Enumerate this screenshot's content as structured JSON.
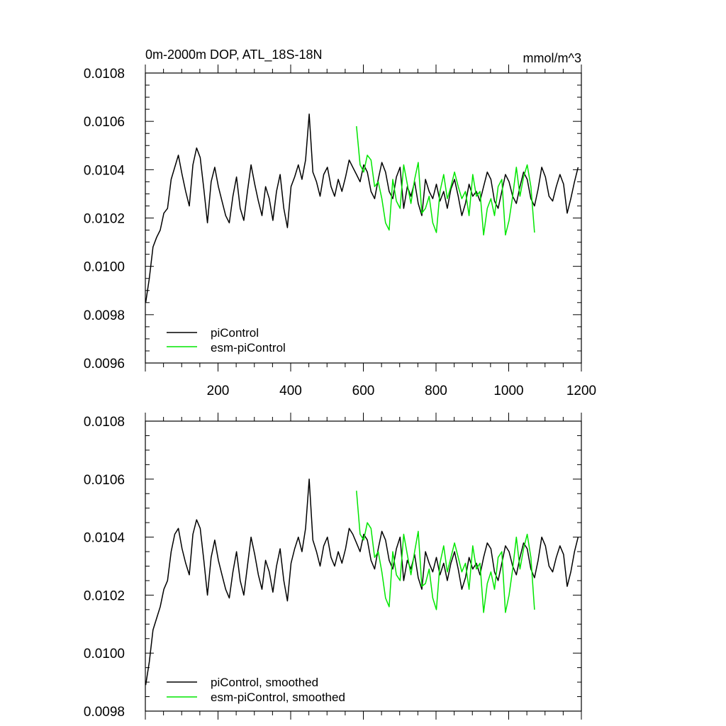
{
  "chart_data": [
    {
      "type": "line",
      "title": "0m-2000m DOP, ATL_18S-18N",
      "units": "mmol/m^3",
      "xlim": [
        0,
        1200
      ],
      "ylim": [
        0.0096,
        0.0108
      ],
      "x_ticks": [
        200,
        400,
        600,
        800,
        1000,
        1200
      ],
      "x_tick_labels": [
        "200",
        "400",
        "600",
        "800",
        "1000",
        "1200"
      ],
      "y_ticks": [
        0.0096,
        0.0098,
        0.01,
        0.0102,
        0.0104,
        0.0106,
        0.0108
      ],
      "y_tick_labels": [
        "0.0096",
        "0.0098",
        "0.0100",
        "0.0102",
        "0.0104",
        "0.0106",
        "0.0108"
      ],
      "legend_position": "bottom-left",
      "series": [
        {
          "name": "piControl",
          "color": "#000000",
          "x_start": 1,
          "x_step": 10,
          "values": [
            0.00985,
            0.00995,
            0.01008,
            0.01012,
            0.01015,
            0.01022,
            0.01024,
            0.01036,
            0.01041,
            0.01046,
            0.01038,
            0.01031,
            0.01025,
            0.01042,
            0.01049,
            0.01045,
            0.01032,
            0.01018,
            0.01035,
            0.01041,
            0.01033,
            0.01027,
            0.01021,
            0.01018,
            0.01029,
            0.01037,
            0.01024,
            0.01019,
            0.01031,
            0.01042,
            0.01034,
            0.01027,
            0.01021,
            0.01033,
            0.01028,
            0.01019,
            0.01031,
            0.01038,
            0.01024,
            0.01016,
            0.01033,
            0.01037,
            0.01042,
            0.01036,
            0.01044,
            0.01063,
            0.01039,
            0.01035,
            0.01029,
            0.01038,
            0.01041,
            0.01033,
            0.01029,
            0.01036,
            0.01031,
            0.01037,
            0.01044,
            0.01041,
            0.01038,
            0.01035,
            0.01042,
            0.01039,
            0.01031,
            0.01028,
            0.01036,
            0.01043,
            0.01039,
            0.01031,
            0.01028,
            0.01037,
            0.01041,
            0.01024,
            0.01033,
            0.01029,
            0.01035,
            0.01026,
            0.01021,
            0.01036,
            0.01031,
            0.01028,
            0.01034,
            0.01027,
            0.01031,
            0.01024,
            0.01032,
            0.01036,
            0.01029,
            0.01021,
            0.01026,
            0.01034,
            0.01029,
            0.01031,
            0.01027,
            0.01033,
            0.01039,
            0.01036,
            0.01027,
            0.01024,
            0.01031,
            0.01038,
            0.01035,
            0.01029,
            0.01026,
            0.01033,
            0.01039,
            0.01036,
            0.01028,
            0.01025,
            0.01032,
            0.01041,
            0.01037,
            0.01029,
            0.01027,
            0.01033,
            0.01038,
            0.01034,
            0.01022,
            0.01028,
            0.01035,
            0.01041
          ]
        },
        {
          "name": "esm-piControl",
          "color": "#00e600",
          "x_start": 581,
          "x_step": 10,
          "values": [
            0.01058,
            0.01042,
            0.01039,
            0.01046,
            0.01044,
            0.01033,
            0.01035,
            0.01028,
            0.01018,
            0.01015,
            0.01036,
            0.01027,
            0.01024,
            0.01042,
            0.01034,
            0.01026,
            0.01036,
            0.01043,
            0.01022,
            0.01024,
            0.01029,
            0.01018,
            0.01014,
            0.01031,
            0.01038,
            0.01028,
            0.01033,
            0.01039,
            0.01033,
            0.01028,
            0.01031,
            0.01021,
            0.01038,
            0.01029,
            0.01031,
            0.01013,
            0.01024,
            0.01028,
            0.01021,
            0.01033,
            0.01036,
            0.01013,
            0.01019,
            0.01029,
            0.01041,
            0.01029,
            0.01037,
            0.01042,
            0.01033,
            0.01014
          ]
        }
      ]
    },
    {
      "type": "line",
      "title": "",
      "xlim": [
        0,
        1200
      ],
      "ylim": [
        0.0098,
        0.0108
      ],
      "x_ticks": [
        200,
        400,
        600,
        800,
        1000,
        1200
      ],
      "y_ticks": [
        0.0098,
        0.01,
        0.0102,
        0.0104,
        0.0106,
        0.0108
      ],
      "y_tick_labels": [
        "0.0098",
        "0.0100",
        "0.0102",
        "0.0104",
        "0.0106",
        "0.0108"
      ],
      "legend_position": "bottom-left",
      "series": [
        {
          "name": "piControl, smoothed",
          "color": "#000000",
          "x_start": 1,
          "x_step": 10,
          "values": [
            0.00989,
            0.00997,
            0.01008,
            0.01012,
            0.01016,
            0.01022,
            0.01025,
            0.01035,
            0.01041,
            0.01043,
            0.01036,
            0.01031,
            0.01027,
            0.01041,
            0.01046,
            0.01043,
            0.01032,
            0.0102,
            0.01033,
            0.01039,
            0.01032,
            0.01027,
            0.01022,
            0.01019,
            0.01028,
            0.01035,
            0.01025,
            0.0102,
            0.0103,
            0.0104,
            0.01034,
            0.01027,
            0.01022,
            0.01032,
            0.01028,
            0.01021,
            0.0103,
            0.01036,
            0.01025,
            0.01018,
            0.01031,
            0.01036,
            0.0104,
            0.01035,
            0.01043,
            0.0106,
            0.01039,
            0.01035,
            0.0103,
            0.01037,
            0.0104,
            0.01033,
            0.0103,
            0.01035,
            0.01031,
            0.01036,
            0.01043,
            0.01041,
            0.01038,
            0.01035,
            0.01041,
            0.01039,
            0.01032,
            0.01029,
            0.01036,
            0.01042,
            0.01039,
            0.01032,
            0.01029,
            0.01036,
            0.0104,
            0.01025,
            0.01032,
            0.01029,
            0.01034,
            0.01026,
            0.01022,
            0.01035,
            0.01031,
            0.01028,
            0.01033,
            0.01027,
            0.01031,
            0.01025,
            0.01031,
            0.01035,
            0.01029,
            0.01022,
            0.01026,
            0.01033,
            0.01029,
            0.01031,
            0.01027,
            0.01033,
            0.01038,
            0.01036,
            0.01028,
            0.01025,
            0.01031,
            0.01037,
            0.01035,
            0.0103,
            0.01027,
            0.01033,
            0.01038,
            0.01036,
            0.01029,
            0.01026,
            0.01032,
            0.0104,
            0.01037,
            0.0103,
            0.01028,
            0.01033,
            0.01037,
            0.01034,
            0.01023,
            0.01028,
            0.01035,
            0.0104
          ]
        },
        {
          "name": "esm-piControl, smoothed",
          "color": "#00e600",
          "x_start": 581,
          "x_step": 10,
          "values": [
            0.01056,
            0.01041,
            0.01039,
            0.01045,
            0.01043,
            0.01033,
            0.01035,
            0.01028,
            0.01019,
            0.01016,
            0.01035,
            0.01027,
            0.01025,
            0.01041,
            0.01034,
            0.01027,
            0.01035,
            0.01042,
            0.01023,
            0.01024,
            0.01029,
            0.01019,
            0.01015,
            0.01031,
            0.01037,
            0.01028,
            0.01033,
            0.01038,
            0.01033,
            0.01028,
            0.01031,
            0.01022,
            0.01037,
            0.01029,
            0.01031,
            0.01014,
            0.01024,
            0.01028,
            0.01022,
            0.01033,
            0.01035,
            0.01014,
            0.0102,
            0.01029,
            0.0104,
            0.01029,
            0.01036,
            0.01041,
            0.01033,
            0.01015
          ]
        }
      ]
    }
  ]
}
